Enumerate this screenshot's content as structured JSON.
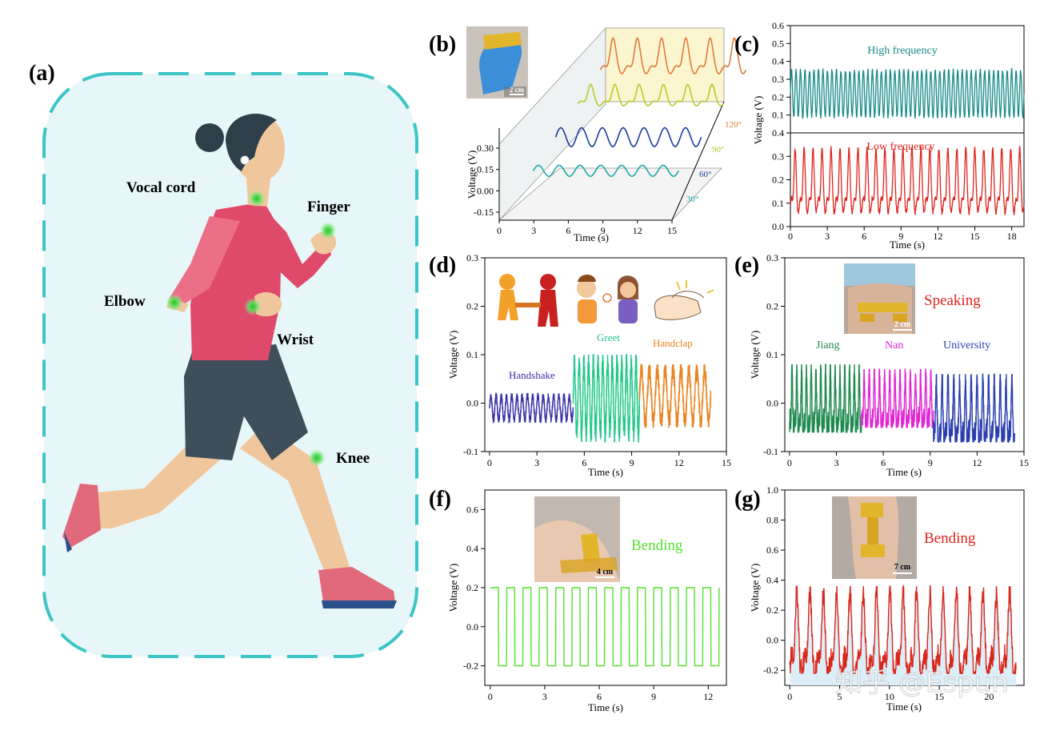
{
  "panel_a": {
    "label": "(a)",
    "body_parts": [
      "Vocal cord",
      "Finger",
      "Elbow",
      "Wrist",
      "Knee"
    ],
    "colors": {
      "frame": "#3cc5c5",
      "fill": "#e7f6f8",
      "sensor": "#4fd64f"
    }
  },
  "chart_data": [
    {
      "panel": "(b)",
      "type": "line",
      "ylabel": "Voltage (V)",
      "xlabel": "Time (s)",
      "x_ticks": [
        "0",
        "3",
        "6",
        "9",
        "12",
        "15"
      ],
      "y_ticks": [
        "0.30",
        "0.15",
        "0.00",
        "-0.15"
      ],
      "xlim": [
        0,
        15
      ],
      "ylim": [
        -0.15,
        0.3
      ],
      "inset_scale": "2 cm",
      "series": [
        {
          "name": "30°",
          "color": "#1fa9a8",
          "cycles": 7,
          "amplitude": 0.035,
          "baseline": 0.1
        },
        {
          "name": "60°",
          "color": "#1b3b9c",
          "cycles": 7,
          "amplitude": 0.06,
          "baseline": 0.1
        },
        {
          "name": "90°",
          "color": "#b3cc2a",
          "cycles": 6,
          "amplitude": 0.12,
          "baseline": 0.1
        },
        {
          "name": "120°",
          "color": "#e07a3a",
          "cycles": 6,
          "amplitude": 0.2,
          "baseline": 0.1
        }
      ]
    },
    {
      "panel": "(c)",
      "type": "line",
      "ylabel": "Voltage (V)",
      "xlabel": "Time (s)",
      "x_ticks": [
        "0",
        "3",
        "6",
        "9",
        "12",
        "15",
        "18"
      ],
      "xlim": [
        0,
        19
      ],
      "ylim": [
        0,
        0.6
      ],
      "subplots": [
        {
          "name": "High frequency",
          "color": "#168a86",
          "ylim": [
            0,
            0.6
          ],
          "y_ticks": [
            "0.0",
            "0.1",
            "0.2",
            "0.3",
            "0.4",
            "0.5",
            "0.6"
          ],
          "cycles": 52,
          "min": 0.08,
          "max": 0.36
        },
        {
          "name": "Low frequency",
          "color": "#e0231c",
          "ylim": [
            0,
            0.4
          ],
          "y_ticks": [
            "0.0",
            "0.1",
            "0.2",
            "0.3",
            "0.4"
          ],
          "cycles": 26,
          "min": 0.08,
          "max": 0.34
        }
      ]
    },
    {
      "panel": "(d)",
      "type": "line",
      "ylabel": "Voltage (V)",
      "xlabel": "Time (s)",
      "x_ticks": [
        "0",
        "3",
        "6",
        "9",
        "12",
        "15"
      ],
      "y_ticks": [
        "-0.1",
        "0.0",
        "0.1",
        "0.2",
        "0.3"
      ],
      "xlim": [
        -0.3,
        15
      ],
      "ylim": [
        -0.1,
        0.3
      ],
      "series": [
        {
          "name": "Handshake",
          "color": "#3a2fa8",
          "x_range": [
            0,
            5.3
          ],
          "cycles": 16,
          "min": -0.04,
          "max": 0.02
        },
        {
          "name": "Greet",
          "color": "#21c78a",
          "x_range": [
            5.3,
            9.5
          ],
          "cycles": 14,
          "min": -0.08,
          "max": 0.1
        },
        {
          "name": "Handclap",
          "color": "#ea8420",
          "x_range": [
            9.5,
            14
          ],
          "cycles": 9,
          "min": -0.05,
          "max": 0.08
        }
      ]
    },
    {
      "panel": "(e)",
      "type": "line",
      "ylabel": "Voltage (V)",
      "xlabel": "Time (s)",
      "x_ticks": [
        "0",
        "3",
        "6",
        "9",
        "12",
        "15"
      ],
      "y_ticks": [
        "-0.1",
        "0.0",
        "0.1",
        "0.2",
        "0.3"
      ],
      "xlim": [
        -0.3,
        15
      ],
      "ylim": [
        -0.1,
        0.3
      ],
      "annotation": "Speaking",
      "inset_scale": "2 cm",
      "series": [
        {
          "name": "Jiang",
          "color": "#1f8a50",
          "x_range": [
            0,
            4.6
          ],
          "cycles": 15,
          "min": -0.06,
          "max": 0.08
        },
        {
          "name": "Nan",
          "color": "#e027d3",
          "x_range": [
            4.6,
            9.2
          ],
          "cycles": 14,
          "min": -0.05,
          "max": 0.07
        },
        {
          "name": "University",
          "color": "#2a3fb0",
          "x_range": [
            9.2,
            14.4
          ],
          "cycles": 14,
          "min": -0.08,
          "max": 0.06
        }
      ]
    },
    {
      "panel": "(f)",
      "type": "line",
      "ylabel": "Voltage (V)",
      "xlabel": "Time (s)",
      "x_ticks": [
        "0",
        "3",
        "6",
        "9",
        "12"
      ],
      "y_ticks": [
        "-0.2",
        "0.0",
        "0.2",
        "0.4",
        "0.6"
      ],
      "xlim": [
        -0.3,
        13
      ],
      "ylim": [
        -0.3,
        0.7
      ],
      "annotation": "Bending",
      "inset_scale": "4 cm",
      "series": [
        {
          "name": "Bending",
          "color": "#55e02f",
          "x_range": [
            0,
            12.6
          ],
          "cycles": 14,
          "min": -0.2,
          "max": 0.2
        }
      ]
    },
    {
      "panel": "(g)",
      "type": "area",
      "ylabel": "Voltage (V)",
      "xlabel": "Time (s)",
      "x_ticks": [
        "0",
        "5",
        "10",
        "15",
        "20"
      ],
      "y_ticks": [
        "-0.2",
        "0.0",
        "0.2",
        "0.4",
        "0.6",
        "0.8",
        "1.0"
      ],
      "xlim": [
        -0.5,
        23.5
      ],
      "ylim": [
        -0.3,
        1.0
      ],
      "annotation": "Bending",
      "inset_scale": "7 cm",
      "series": [
        {
          "name": "Bending",
          "color": "#d9261c",
          "fill": "#dceef8",
          "x_range": [
            0,
            22.7
          ],
          "cycles": 17,
          "min": -0.22,
          "max": 0.36
        }
      ]
    }
  ],
  "inset_texts": {
    "d_icons": [
      "Handshake",
      "Greet",
      "Handclap"
    ]
  },
  "watermark": "知乎 @Espun"
}
